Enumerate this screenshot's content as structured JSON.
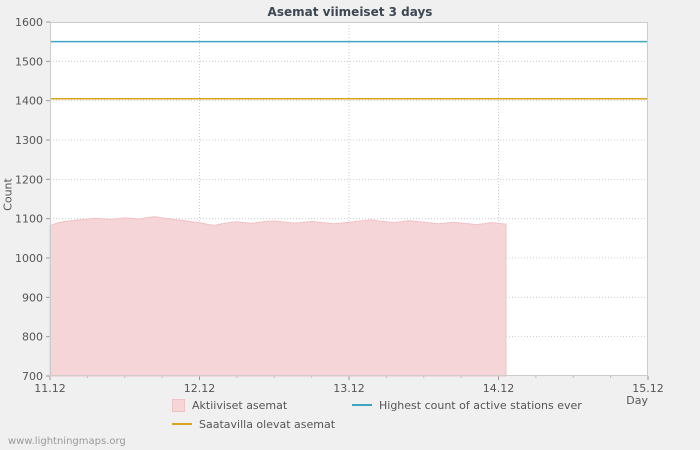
{
  "watermark": "www.lightningmaps.org",
  "chart_data": {
    "type": "area",
    "title": "Asemat viimeiset 3 days",
    "xlabel": "Day",
    "ylabel": "Count",
    "ylim": [
      700,
      1600
    ],
    "ytick_step": 100,
    "x_range": [
      0,
      4
    ],
    "x_unit": "days since 11.12",
    "x_ticks": [
      "11.12",
      "12.12",
      "13.12",
      "14.12",
      "15.12"
    ],
    "grid": true,
    "legend_position": "bottom",
    "colors": {
      "background": "#f0f0f0",
      "plot_bg": "#ffffff",
      "grid": "#cccccc",
      "text": "#555555",
      "title": "#3e4754"
    },
    "series": [
      {
        "id": "active",
        "name": "Aktiiviset asemat",
        "type": "area",
        "color": "#f6d5d8",
        "edge_color": "#f0c2c6",
        "x_start": 0,
        "x_step": 0.05,
        "values": [
          1082,
          1089,
          1093,
          1095,
          1097,
          1099,
          1101,
          1100,
          1098,
          1100,
          1102,
          1101,
          1099,
          1103,
          1105,
          1102,
          1100,
          1097,
          1095,
          1092,
          1090,
          1086,
          1083,
          1087,
          1090,
          1092,
          1090,
          1088,
          1091,
          1093,
          1094,
          1092,
          1090,
          1089,
          1091,
          1093,
          1091,
          1089,
          1087,
          1089,
          1091,
          1093,
          1095,
          1097,
          1094,
          1092,
          1090,
          1092,
          1095,
          1093,
          1091,
          1089,
          1087,
          1089,
          1091,
          1089,
          1087,
          1085,
          1087,
          1090,
          1088,
          1086
        ]
      },
      {
        "id": "available",
        "name": "Saatavilla olevat asemat",
        "type": "hline",
        "color": "#d6a51d",
        "value": 1405
      },
      {
        "id": "highest",
        "name": "Highest count of active stations ever",
        "type": "hline",
        "color": "#3da4c1",
        "value": 1550
      }
    ]
  }
}
